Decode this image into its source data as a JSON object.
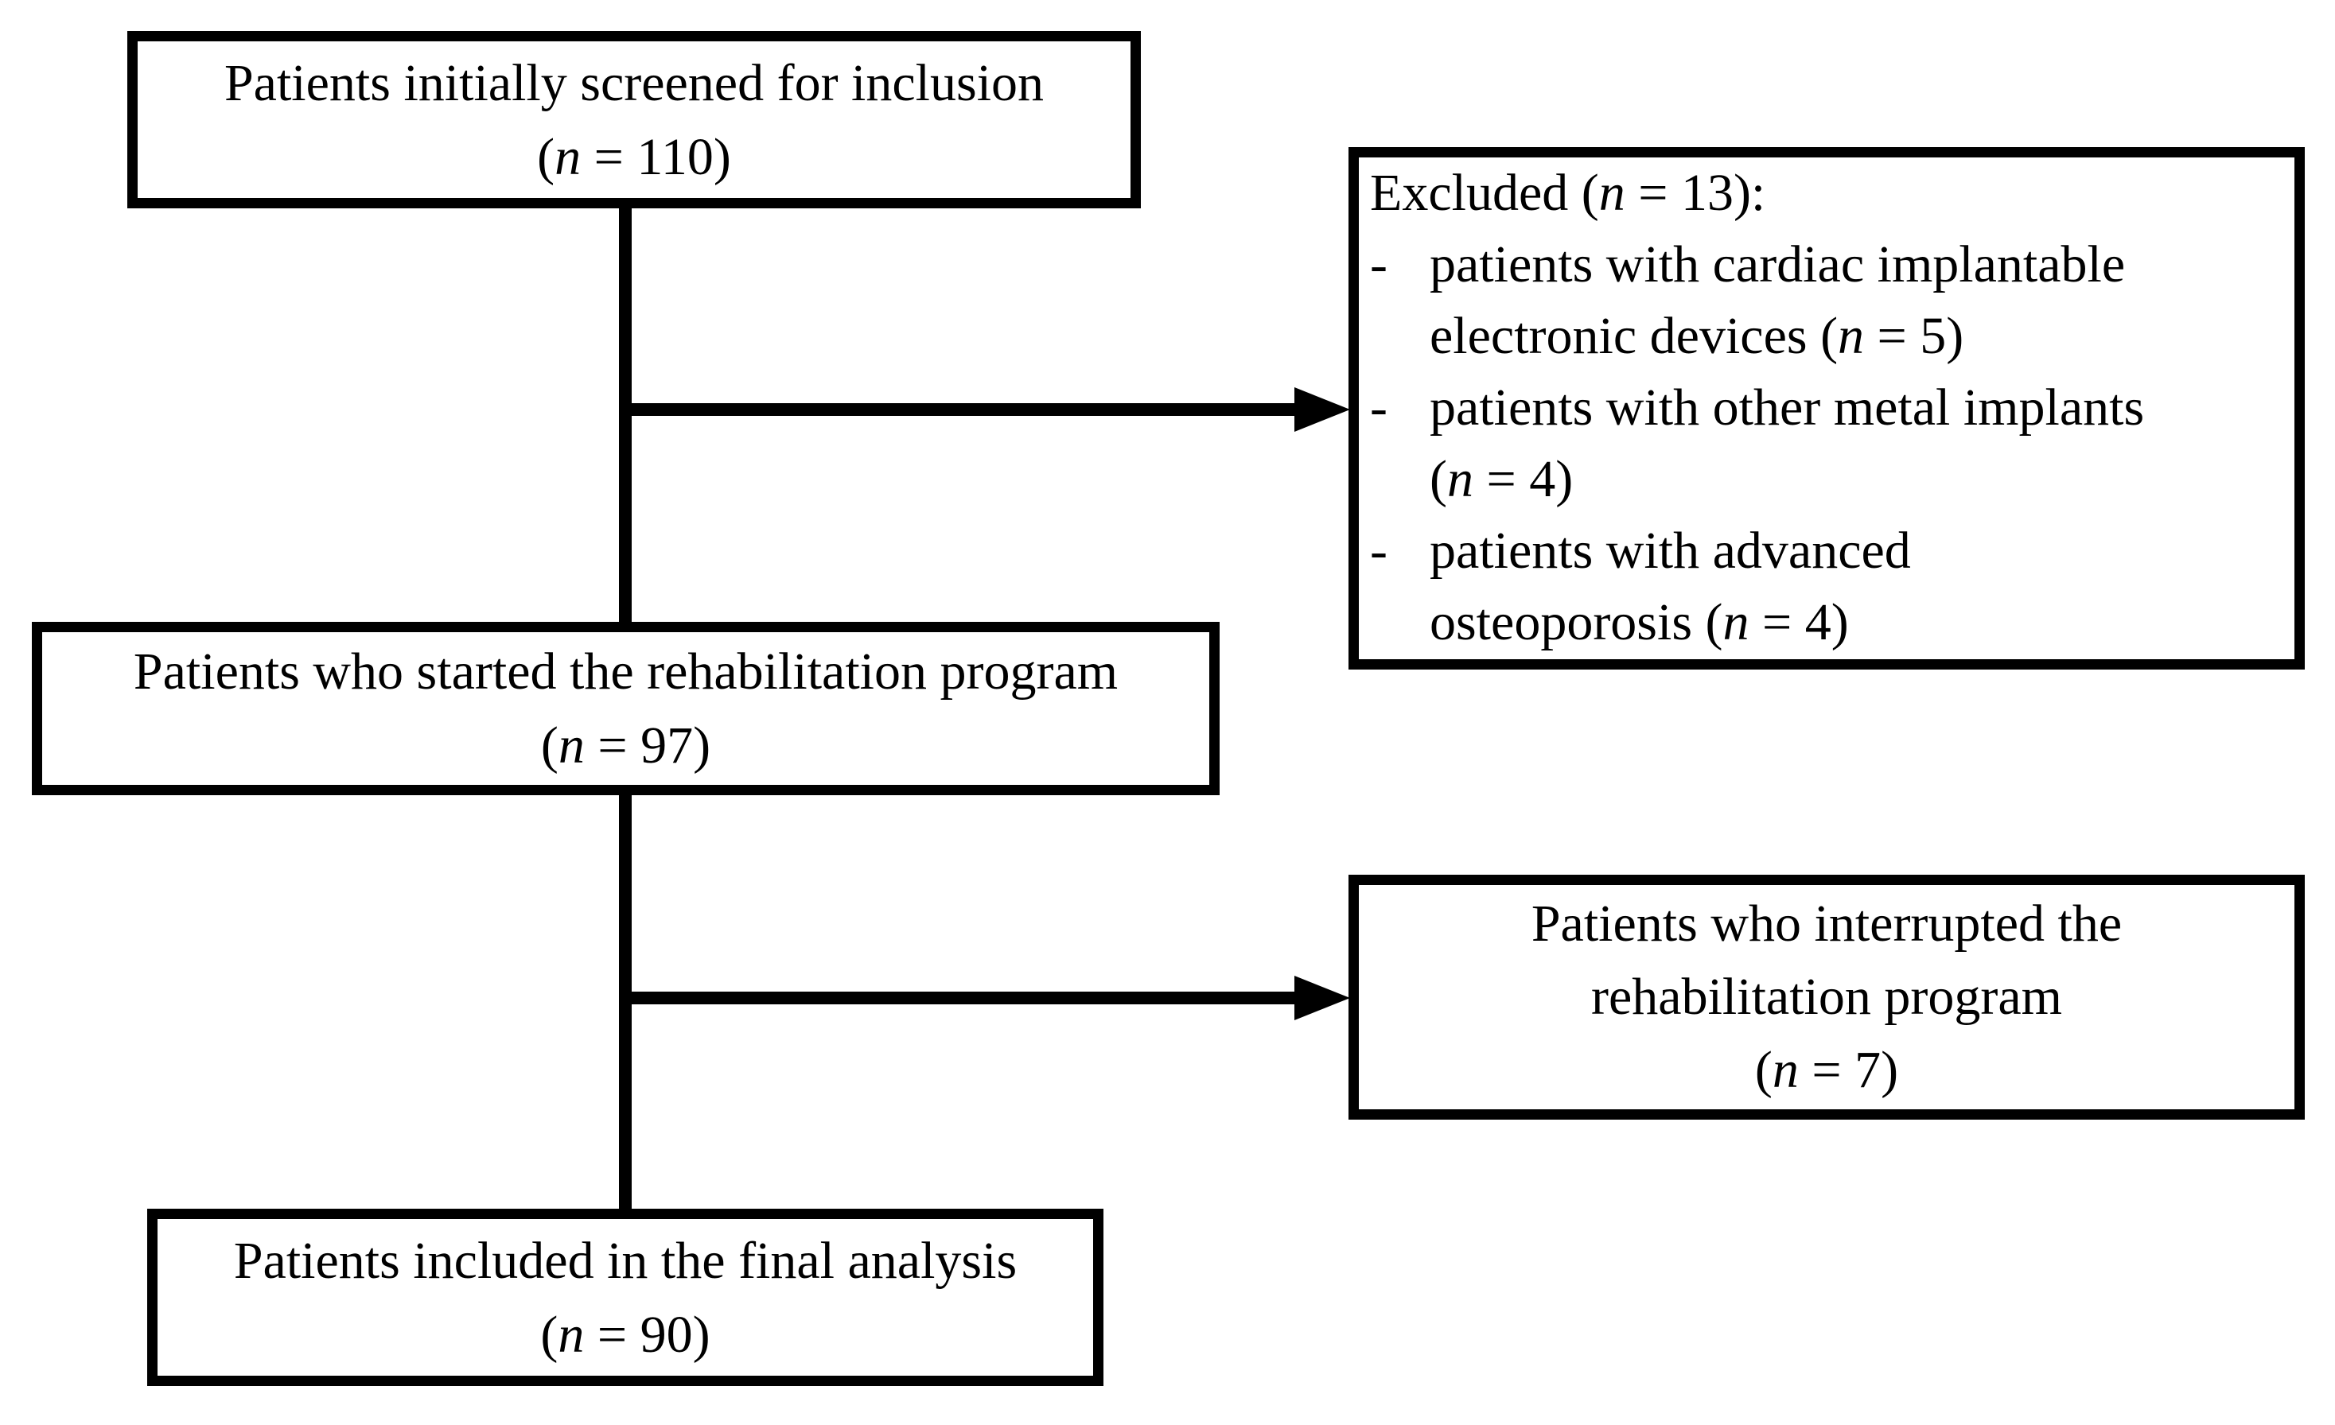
{
  "diagram": {
    "colors": {
      "ink": "#000000",
      "paper": "#ffffff"
    },
    "boxes": {
      "screened": {
        "title": "Patients initially screened for inclusion",
        "count_prefix": "(",
        "count_symbol": "n",
        "count_suffix": " = 110)"
      },
      "excluded": {
        "lines": [
          {
            "bullet": "",
            "before": "Excluded (",
            "n": "n",
            "after": " = 13):"
          },
          {
            "bullet": "-",
            "before": "patients with cardiac implantable",
            "n": "",
            "after": ""
          },
          {
            "bullet": "",
            "before": "electronic devices (",
            "n": "n",
            "after": " = 5)"
          },
          {
            "bullet": "-",
            "before": "patients with other metal implants",
            "n": "",
            "after": ""
          },
          {
            "bullet": "",
            "before": "(",
            "n": "n",
            "after": " = 4)"
          },
          {
            "bullet": "-",
            "before": "patients with advanced",
            "n": "",
            "after": ""
          },
          {
            "bullet": "",
            "before": "osteoporosis (",
            "n": "n",
            "after": " = 4)"
          }
        ]
      },
      "started": {
        "title": "Patients who started the rehabilitation program",
        "count_prefix": "(",
        "count_symbol": "n",
        "count_suffix": " = 97)"
      },
      "interrupted": {
        "title_line1": "Patients who interrupted the",
        "title_line2": "rehabilitation program",
        "count_prefix": "(",
        "count_symbol": "n",
        "count_suffix": " = 7)"
      },
      "final": {
        "title": "Patients included in the final analysis",
        "count_prefix": "(",
        "count_symbol": "n",
        "count_suffix": " = 90)"
      }
    }
  }
}
